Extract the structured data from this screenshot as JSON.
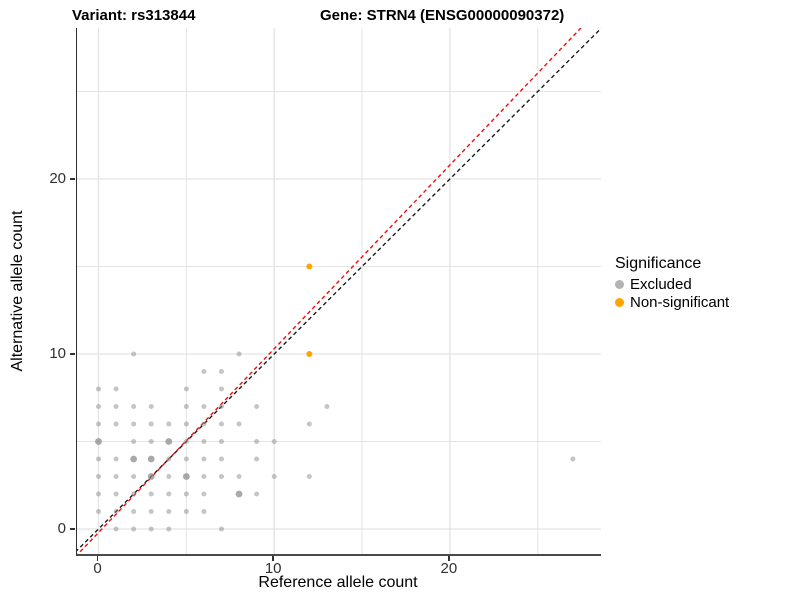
{
  "header": {
    "title_left": "Variant: rs313844",
    "title_right": "Gene: STRN4 (ENSG00000090372)"
  },
  "chart_data": {
    "type": "scatter",
    "title": "Variant: rs313844 — Gene: STRN4 (ENSG00000090372)",
    "xlabel": "Reference allele count",
    "ylabel": "Alternative allele count",
    "xlim": [
      -1.5,
      28.6
    ],
    "ylim": [
      -1.5,
      28.6
    ],
    "x_ticks": [
      0,
      10,
      20
    ],
    "y_ticks": [
      0,
      10,
      20
    ],
    "gridline_values": [
      0,
      5,
      10,
      15,
      20,
      25
    ],
    "grid": "on",
    "legend_position": "right",
    "colors": {
      "excluded": "#b3b3b3",
      "non_significant": "#FFA500",
      "identity_line": "#1a1a1a",
      "fit_line": "#F00C0C",
      "gridline": "#e4e4e4",
      "axis_text": "#303030"
    },
    "legend": {
      "title": "Significance",
      "items": [
        {
          "label": "Excluded",
          "color": "#b3b3b3"
        },
        {
          "label": "Non-significant",
          "color": "#FFA500"
        }
      ]
    },
    "series": [
      {
        "name": "Excluded",
        "color": "#8c8c8c",
        "opacity": 0.5,
        "points": [
          [
            1,
            0
          ],
          [
            2,
            0
          ],
          [
            3,
            0
          ],
          [
            4,
            0
          ],
          [
            7,
            0
          ],
          [
            0,
            1
          ],
          [
            1,
            1
          ],
          [
            2,
            1
          ],
          [
            3,
            1
          ],
          [
            4,
            1
          ],
          [
            5,
            1
          ],
          [
            6,
            1
          ],
          [
            0,
            2
          ],
          [
            1,
            2
          ],
          [
            2,
            2
          ],
          [
            3,
            2
          ],
          [
            4,
            2
          ],
          [
            5,
            2
          ],
          [
            6,
            2
          ],
          [
            8,
            2,
            2
          ],
          [
            9,
            2
          ],
          [
            0,
            3
          ],
          [
            1,
            3
          ],
          [
            2,
            3
          ],
          [
            3,
            3,
            2
          ],
          [
            4,
            3
          ],
          [
            5,
            3,
            2
          ],
          [
            6,
            3
          ],
          [
            7,
            3
          ],
          [
            8,
            3
          ],
          [
            10,
            3
          ],
          [
            12,
            3
          ],
          [
            0,
            4
          ],
          [
            1,
            4
          ],
          [
            2,
            4,
            2
          ],
          [
            3,
            4,
            2
          ],
          [
            4,
            4
          ],
          [
            5,
            4
          ],
          [
            6,
            4
          ],
          [
            7,
            4
          ],
          [
            9,
            4
          ],
          [
            27,
            4
          ],
          [
            0,
            5,
            2
          ],
          [
            2,
            5
          ],
          [
            3,
            5
          ],
          [
            4,
            5,
            2
          ],
          [
            5,
            5
          ],
          [
            6,
            5
          ],
          [
            7,
            5
          ],
          [
            9,
            5
          ],
          [
            10,
            5
          ],
          [
            0,
            6
          ],
          [
            1,
            6
          ],
          [
            2,
            6
          ],
          [
            3,
            6
          ],
          [
            4,
            6
          ],
          [
            5,
            6
          ],
          [
            6,
            6
          ],
          [
            7,
            6
          ],
          [
            8,
            6
          ],
          [
            12,
            6
          ],
          [
            0,
            7
          ],
          [
            1,
            7
          ],
          [
            2,
            7
          ],
          [
            3,
            7
          ],
          [
            5,
            7
          ],
          [
            6,
            7
          ],
          [
            7,
            7
          ],
          [
            9,
            7
          ],
          [
            13,
            7
          ],
          [
            0,
            8
          ],
          [
            1,
            8
          ],
          [
            5,
            8
          ],
          [
            7,
            8
          ],
          [
            6,
            9
          ],
          [
            7,
            9
          ],
          [
            2,
            10
          ],
          [
            8,
            10
          ]
        ]
      },
      {
        "name": "Non-significant",
        "color": "#FFA500",
        "opacity": 1,
        "points": [
          [
            12,
            10
          ],
          [
            12,
            15
          ]
        ]
      }
    ],
    "lines": [
      {
        "name": "identity-line",
        "slope": 1.0,
        "intercept": 0,
        "color": "#1a1a1a",
        "style": "dashed"
      },
      {
        "name": "fit-line",
        "slope": 1.05,
        "intercept": -0.2,
        "color": "#F00C0C",
        "style": "dashed"
      }
    ]
  }
}
